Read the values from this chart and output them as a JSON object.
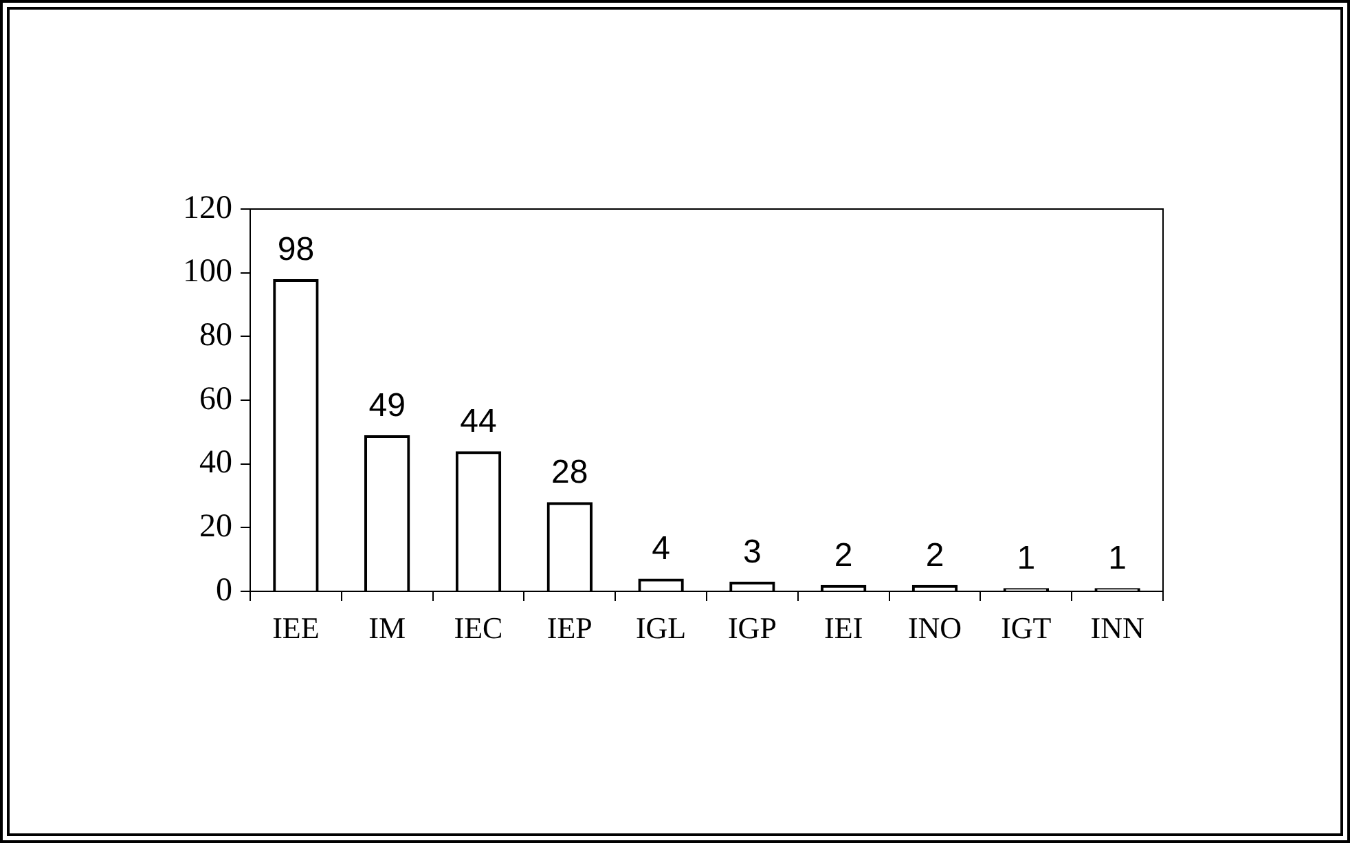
{
  "chart_data": {
    "type": "bar",
    "categories": [
      "IEE",
      "IM",
      "IEC",
      "IEP",
      "IGL",
      "IGP",
      "IEI",
      "INO",
      "IGT",
      "INN"
    ],
    "values": [
      98,
      49,
      44,
      28,
      4,
      3,
      2,
      2,
      1,
      1
    ],
    "color": "#000000",
    "ylim": [
      0,
      120
    ],
    "yticks": [
      0,
      20,
      40,
      60,
      80,
      100,
      120
    ],
    "grid": false,
    "legend": false,
    "data_labels": true
  }
}
